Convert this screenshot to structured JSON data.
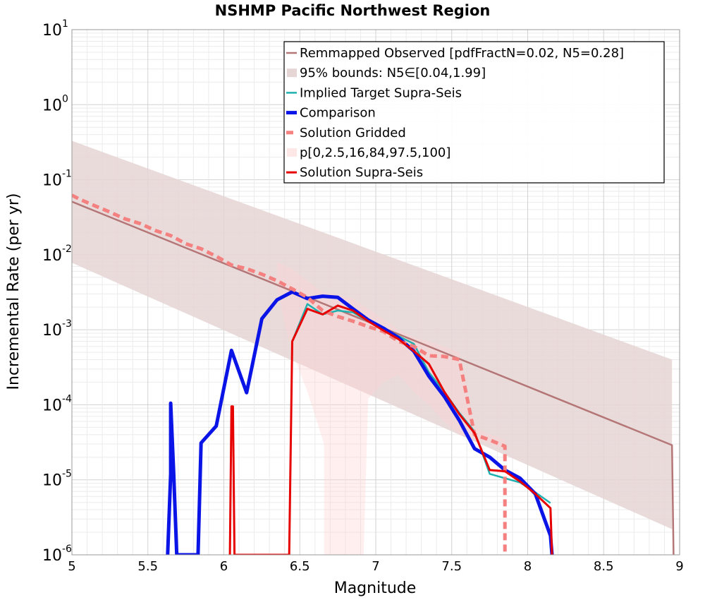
{
  "chart_data": {
    "type": "line",
    "title": "NSHMP Pacific Northwest Region",
    "xlabel": "Magnitude",
    "ylabel": "Incremental Rate (per yr)",
    "xlim": [
      5,
      9
    ],
    "ylim": [
      1e-06,
      10
    ],
    "yscale": "log",
    "grid": true,
    "legend_position": "top-right",
    "xticks": [
      "5",
      "5.5",
      "6",
      "6.5",
      "7",
      "7.5",
      "8",
      "8.5",
      "9"
    ],
    "yticks": [
      {
        "base": "10",
        "exp": "-6",
        "value": 1e-06
      },
      {
        "base": "10",
        "exp": "-5",
        "value": 1e-05
      },
      {
        "base": "10",
        "exp": "-4",
        "value": 0.0001
      },
      {
        "base": "10",
        "exp": "-3",
        "value": 0.001
      },
      {
        "base": "10",
        "exp": "-2",
        "value": 0.01
      },
      {
        "base": "10",
        "exp": "-1",
        "value": 0.1
      },
      {
        "base": "10",
        "exp": "0",
        "value": 1
      },
      {
        "base": "10",
        "exp": "1",
        "value": 10
      }
    ],
    "bands": [
      {
        "name": "95% bounds: N5∈[0.04,1.99]",
        "color": "#e6d5d5",
        "opacity": 0.85,
        "x": [
          5.0,
          8.95,
          8.95,
          5.0
        ],
        "y": [
          0.33,
          0.0004,
          2.2e-06,
          0.0078
        ]
      },
      {
        "name": "p[0,2.5,16,84,97.5,100]",
        "color": "#ffd0d0",
        "opacity": 0.35,
        "x": [
          6.35,
          6.45,
          6.55,
          6.65,
          6.75,
          6.85,
          6.95,
          7.05,
          7.15,
          7.25,
          7.35,
          7.45,
          7.55,
          7.65,
          7.75,
          7.85,
          7.85,
          7.75,
          7.65,
          7.55,
          7.45,
          7.35,
          7.25,
          7.15,
          7.05,
          6.95,
          6.92,
          6.85,
          6.75,
          6.66,
          6.66,
          6.55,
          6.45,
          6.4,
          6.35
        ],
        "y": [
          0.008,
          0.0065,
          0.0045,
          0.0032,
          0.0029,
          0.0026,
          0.0019,
          0.0014,
          0.001,
          0.0008,
          0.0007,
          0.0006,
          0.0005,
          5e-05,
          4e-05,
          3.5e-05,
          2.5e-05,
          3e-05,
          3.5e-05,
          4e-05,
          6e-05,
          0.0001,
          0.00015,
          0.00025,
          0.0002,
          0.00012,
          1e-06,
          1e-06,
          1e-06,
          1e-06,
          3e-05,
          0.00015,
          0.0005,
          0.0012,
          0.004
        ]
      }
    ],
    "series": [
      {
        "name": "Remmapped Observed [pdfFractN=0.02, N5=0.28]",
        "color": "#b47676",
        "style": "solid",
        "width": 2.5,
        "x": [
          5.0,
          8.95,
          8.96
        ],
        "y": [
          0.051,
          2.9e-05,
          1e-06
        ]
      },
      {
        "name": "Implied Target Supra-Seis",
        "color": "#20b0b0",
        "style": "solid",
        "width": 2.5,
        "x": [
          6.45,
          6.55,
          6.65,
          6.75,
          6.85,
          6.95,
          7.05,
          7.15,
          7.25,
          7.35,
          7.45,
          7.55,
          7.65,
          7.75,
          7.85,
          7.95,
          8.05,
          8.15
        ],
        "y": [
          0.0007,
          0.0022,
          0.0016,
          0.0018,
          0.0017,
          0.0013,
          0.00105,
          0.00082,
          0.00065,
          0.00027,
          0.00015,
          7.8e-05,
          4.4e-05,
          1.2e-05,
          1.05e-05,
          9.2e-06,
          6.8e-06,
          4.9e-06
        ]
      },
      {
        "name": "Comparison",
        "color": "#0a14e6",
        "style": "solid",
        "width": 5,
        "x": [
          5.63,
          5.65,
          5.65,
          5.67,
          5.69,
          5.83,
          5.85,
          5.95,
          6.05,
          6.15,
          6.25,
          6.35,
          6.45,
          6.55,
          6.65,
          6.75,
          6.85,
          6.95,
          7.05,
          7.15,
          7.25,
          7.35,
          7.45,
          7.55,
          7.65,
          7.75,
          7.85,
          7.95,
          8.05,
          8.15,
          8.16
        ],
        "y": [
          1e-06,
          1.2e-05,
          0.000105,
          1.2e-05,
          1e-06,
          1e-06,
          3.1e-05,
          5.2e-05,
          0.00053,
          0.000145,
          0.0014,
          0.0025,
          0.0032,
          0.0026,
          0.0028,
          0.0027,
          0.0019,
          0.00135,
          0.00105,
          0.00078,
          0.00052,
          0.00024,
          0.00013,
          6.2e-05,
          2.6e-05,
          2e-05,
          1.35e-05,
          1.05e-05,
          6.5e-06,
          1.8e-06,
          1e-06
        ]
      },
      {
        "name": "Solution Gridded",
        "color": "#f48080",
        "style": "dashed",
        "width": 5,
        "x": [
          5.0,
          5.05,
          5.15,
          5.25,
          5.35,
          5.45,
          5.55,
          5.65,
          5.75,
          5.85,
          5.95,
          6.05,
          6.15,
          6.25,
          6.35,
          6.45,
          6.55,
          6.65,
          6.75,
          6.85,
          6.95,
          7.05,
          7.15,
          7.25,
          7.35,
          7.45,
          7.55,
          7.65,
          7.75,
          7.85,
          7.85
        ],
        "y": [
          0.062,
          0.055,
          0.045,
          0.037,
          0.03,
          0.026,
          0.021,
          0.018,
          0.014,
          0.012,
          0.0095,
          0.0073,
          0.0065,
          0.0055,
          0.0045,
          0.0035,
          0.0027,
          0.0018,
          0.0015,
          0.0013,
          0.0011,
          0.00095,
          0.0007,
          0.0006,
          0.00045,
          0.00044,
          0.0004,
          4e-05,
          3.4e-05,
          2.8e-05,
          1e-06
        ]
      },
      {
        "name": "Solution Supra-Seis",
        "color": "#e60000",
        "style": "solid",
        "width": 3,
        "x": [
          6.04,
          6.05,
          6.06,
          6.07,
          6.43,
          6.45,
          6.55,
          6.65,
          6.75,
          6.85,
          6.95,
          7.05,
          7.15,
          7.25,
          7.35,
          7.45,
          7.55,
          7.65,
          7.75,
          7.85,
          7.95,
          8.05,
          8.15,
          8.16
        ],
        "y": [
          1e-06,
          9.5e-05,
          9.5e-05,
          1e-06,
          1e-06,
          0.0007,
          0.0019,
          0.0016,
          0.0021,
          0.0018,
          0.0013,
          0.00098,
          0.00075,
          0.00052,
          0.00035,
          0.00015,
          7.5e-05,
          4.2e-05,
          1.35e-05,
          1.3e-05,
          9.5e-06,
          6.5e-06,
          4.2e-06,
          1e-06
        ]
      }
    ],
    "legend": [
      {
        "label": "Remmapped Observed [pdfFractN=0.02, N5=0.28]",
        "kind": "line",
        "color": "#b47676",
        "width": 2.5,
        "dash": ""
      },
      {
        "label": "95% bounds: N5∈[0.04,1.99]",
        "kind": "patch",
        "color": "#e6d5d5"
      },
      {
        "label": "Implied Target Supra-Seis",
        "kind": "line",
        "color": "#20b0b0",
        "width": 2.5,
        "dash": ""
      },
      {
        "label": "Comparison",
        "kind": "line",
        "color": "#0a14e6",
        "width": 5,
        "dash": ""
      },
      {
        "label": "Solution Gridded",
        "kind": "line",
        "color": "#f48080",
        "width": 5,
        "dash": "10,6"
      },
      {
        "label": "p[0,2.5,16,84,97.5,100]",
        "kind": "patch",
        "color": "#fde7e7"
      },
      {
        "label": "Solution Supra-Seis",
        "kind": "line",
        "color": "#e60000",
        "width": 3,
        "dash": ""
      }
    ]
  }
}
